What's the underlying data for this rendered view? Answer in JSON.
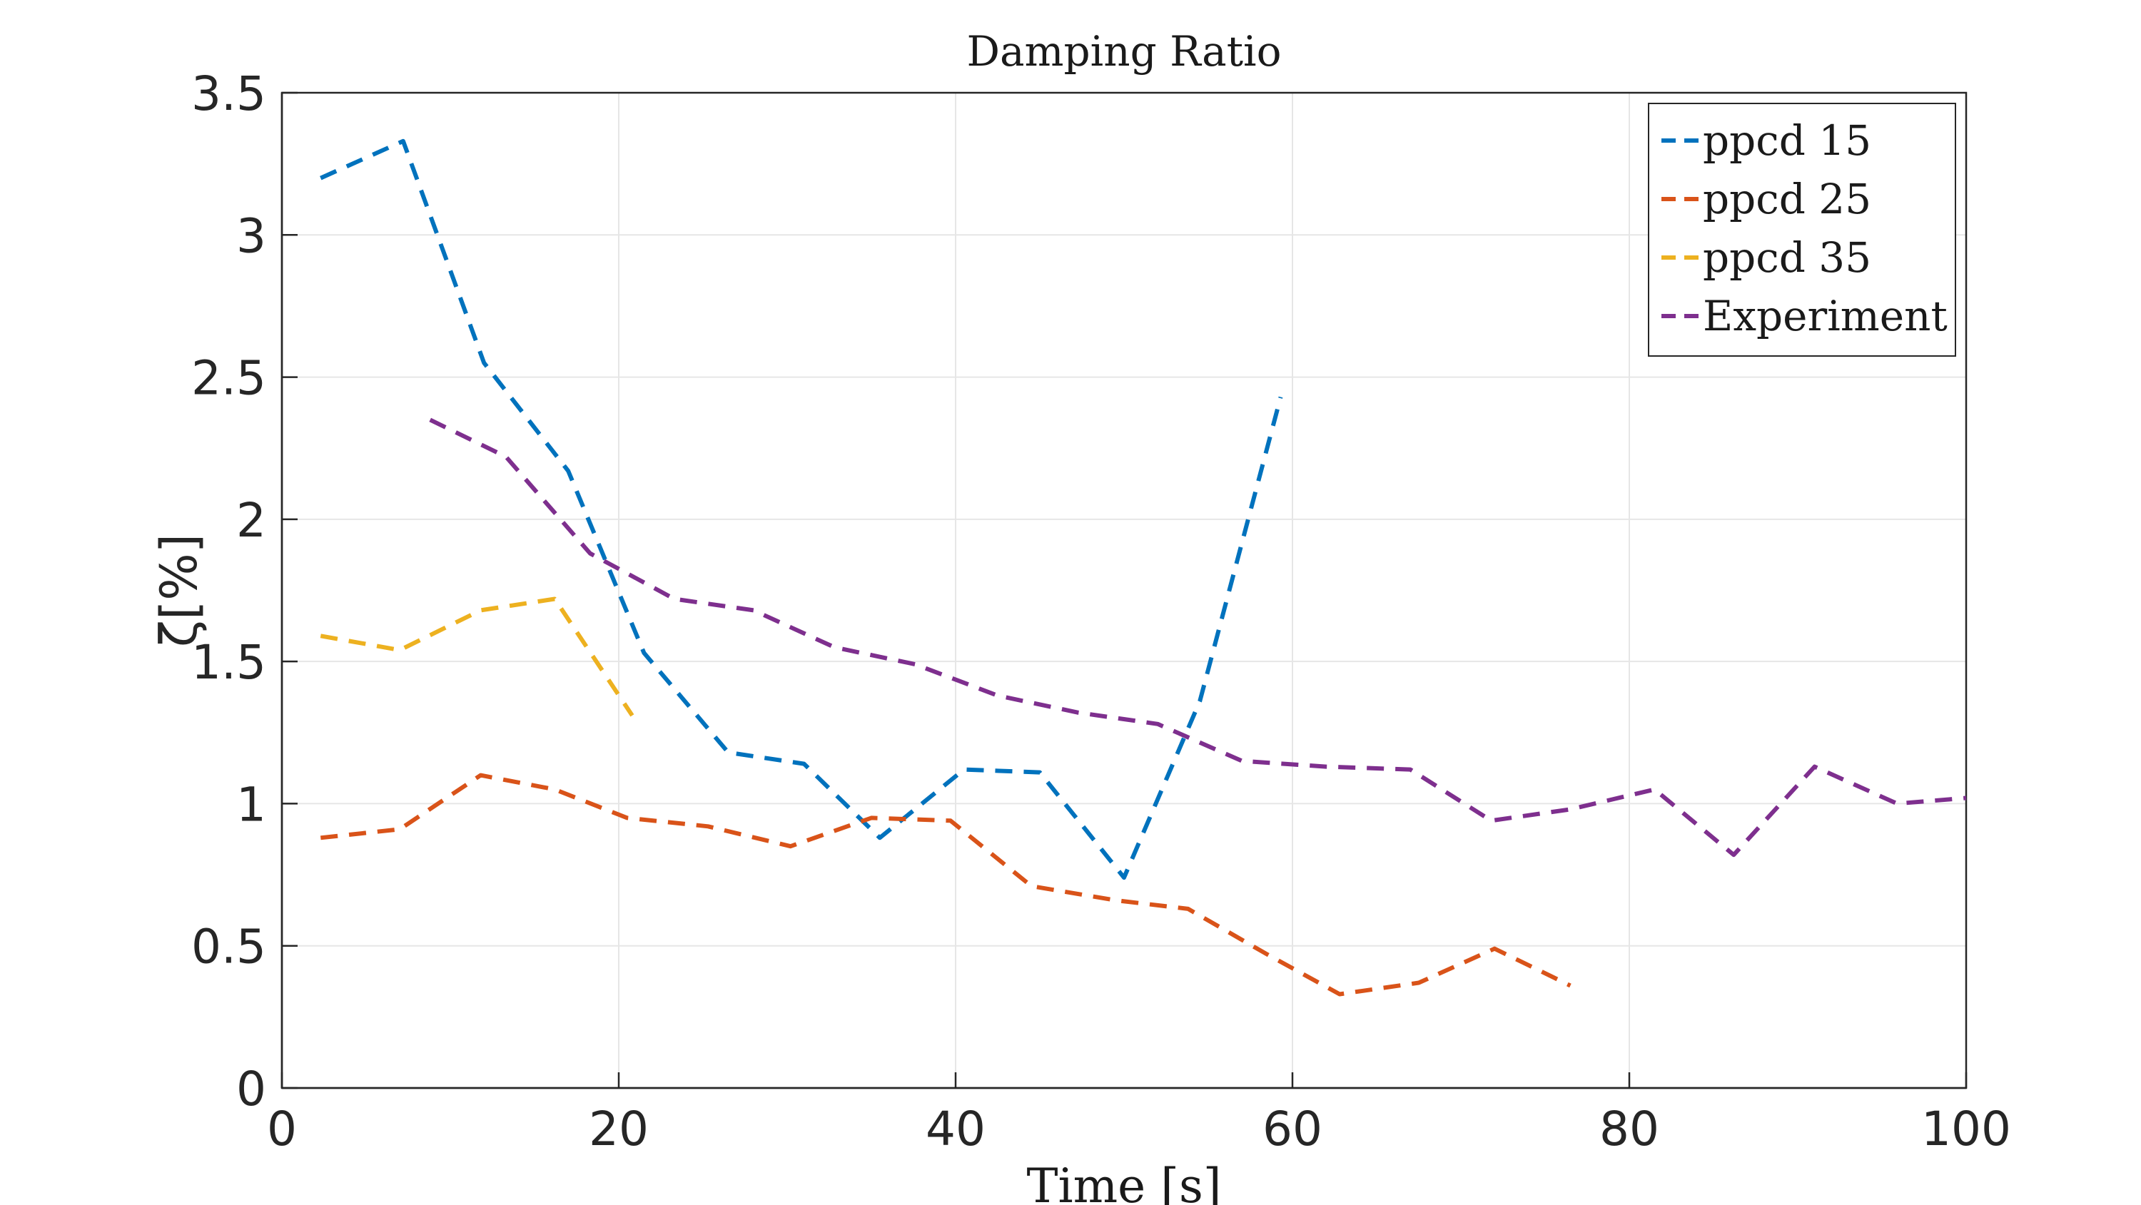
{
  "chart_data": {
    "type": "line",
    "title": "Damping Ratio",
    "xlabel": "Time [s]",
    "ylabel": "ζ[%]",
    "xlim": [
      0,
      100
    ],
    "ylim": [
      0,
      3.5
    ],
    "xticks": [
      0,
      20,
      40,
      60,
      80,
      100
    ],
    "yticks": [
      0,
      0.5,
      1,
      1.5,
      2,
      2.5,
      3,
      3.5
    ],
    "grid": true,
    "legend_position": "top-right",
    "line_style": "dashed",
    "series": [
      {
        "name": "ppcd 15",
        "color": "#0072BD",
        "x": [
          2.3,
          7.2,
          12,
          17,
          21.5,
          26.5,
          31,
          35.5,
          40.5,
          45,
          50,
          54.5,
          59.3
        ],
        "y": [
          3.2,
          3.33,
          2.55,
          2.17,
          1.53,
          1.18,
          1.14,
          0.88,
          1.12,
          1.11,
          0.74,
          1.36,
          2.43
        ]
      },
      {
        "name": "ppcd 25",
        "color": "#D95319",
        "x": [
          2.3,
          7,
          11.8,
          16.2,
          20.5,
          25.3,
          30.2,
          35,
          39.7,
          44.5,
          49.5,
          53.8,
          58.5,
          62.8,
          67.5,
          72,
          76.5
        ],
        "y": [
          0.88,
          0.91,
          1.1,
          1.05,
          0.95,
          0.92,
          0.85,
          0.95,
          0.94,
          0.71,
          0.66,
          0.63,
          0.47,
          0.33,
          0.37,
          0.49,
          0.36
        ]
      },
      {
        "name": "ppcd 35",
        "color": "#EDB120",
        "x": [
          2.3,
          7,
          11.8,
          16.2,
          20.8
        ],
        "y": [
          1.59,
          1.54,
          1.68,
          1.72,
          1.31
        ]
      },
      {
        "name": "Experiment",
        "color": "#7E2F8E",
        "x": [
          8.8,
          13.3,
          18.3,
          23.3,
          28,
          32.8,
          37.6,
          42.5,
          47.3,
          52,
          57,
          62,
          67,
          71.8,
          76.5,
          81.5,
          86.2,
          91,
          95.9,
          100
        ],
        "y": [
          2.35,
          2.22,
          1.88,
          1.72,
          1.68,
          1.55,
          1.49,
          1.38,
          1.32,
          1.28,
          1.15,
          1.13,
          1.12,
          0.94,
          0.98,
          1.05,
          0.82,
          1.13,
          1.0,
          1.02
        ]
      }
    ]
  }
}
